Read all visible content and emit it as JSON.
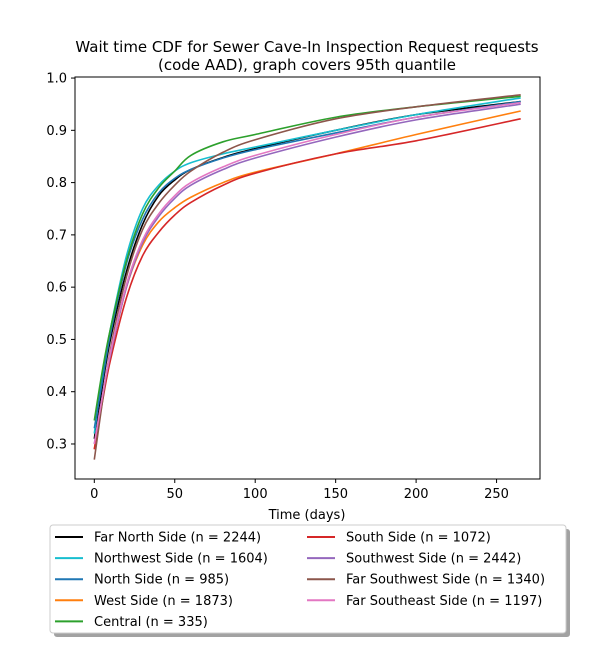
{
  "chart_data": {
    "type": "line",
    "title": "Wait time CDF for Sewer Cave-In Inspection Request  requests",
    "subtitle": "(code AAD), graph covers 95th quantile",
    "xlabel": "Time (days)",
    "ylabel": "",
    "xlim": [
      -12,
      277
    ],
    "ylim": [
      0.233,
      1.002
    ],
    "xticks": [
      0,
      50,
      100,
      150,
      200,
      250
    ],
    "yticks": [
      0.3,
      0.4,
      0.5,
      0.6,
      0.7,
      0.8,
      0.9,
      1.0
    ],
    "xtick_labels": [
      "0",
      "50",
      "100",
      "150",
      "200",
      "250"
    ],
    "ytick_labels": [
      "0.3",
      "0.4",
      "0.5",
      "0.6",
      "0.7",
      "0.8",
      "0.9",
      "1.0"
    ],
    "grid": false,
    "legend_placement": "bottom-center, two columns",
    "series": [
      {
        "name": "Far North Side (n = 2244)",
        "color": "#000000",
        "x": [
          0,
          5,
          10,
          20,
          30,
          40,
          50,
          60,
          80,
          100,
          150,
          200,
          265
        ],
        "y": [
          0.31,
          0.41,
          0.5,
          0.63,
          0.72,
          0.775,
          0.805,
          0.825,
          0.848,
          0.865,
          0.9,
          0.93,
          0.955
        ]
      },
      {
        "name": "Northwest Side (n = 1604)",
        "color": "#17becf",
        "x": [
          0,
          5,
          10,
          20,
          30,
          40,
          50,
          60,
          80,
          100,
          150,
          200,
          265
        ],
        "y": [
          0.32,
          0.43,
          0.52,
          0.66,
          0.75,
          0.795,
          0.822,
          0.838,
          0.855,
          0.868,
          0.9,
          0.93,
          0.962
        ]
      },
      {
        "name": "North Side (n = 985)",
        "color": "#1f77b4",
        "x": [
          0,
          5,
          10,
          20,
          30,
          40,
          50,
          60,
          80,
          100,
          150,
          200,
          265
        ],
        "y": [
          0.33,
          0.42,
          0.51,
          0.645,
          0.73,
          0.78,
          0.808,
          0.825,
          0.847,
          0.863,
          0.895,
          0.925,
          0.955
        ]
      },
      {
        "name": "West Side (n = 1873)",
        "color": "#ff7f0e",
        "x": [
          0,
          5,
          10,
          20,
          30,
          40,
          50,
          60,
          80,
          100,
          150,
          200,
          265
        ],
        "y": [
          0.29,
          0.385,
          0.47,
          0.6,
          0.68,
          0.725,
          0.752,
          0.772,
          0.8,
          0.82,
          0.855,
          0.892,
          0.937
        ]
      },
      {
        "name": "Central (n = 335)",
        "color": "#2ca02c",
        "x": [
          0,
          5,
          10,
          20,
          30,
          40,
          50,
          60,
          80,
          100,
          150,
          200,
          265
        ],
        "y": [
          0.345,
          0.44,
          0.52,
          0.65,
          0.74,
          0.79,
          0.822,
          0.852,
          0.878,
          0.892,
          0.925,
          0.945,
          0.965
        ]
      },
      {
        "name": "South Side (n = 1072)",
        "color": "#d62728",
        "x": [
          0,
          5,
          10,
          20,
          30,
          40,
          50,
          60,
          80,
          100,
          150,
          200,
          265
        ],
        "y": [
          0.29,
          0.38,
          0.46,
          0.58,
          0.66,
          0.705,
          0.738,
          0.762,
          0.795,
          0.818,
          0.855,
          0.88,
          0.922
        ]
      },
      {
        "name": "Southwest Side (n = 2442)",
        "color": "#9467bd",
        "x": [
          0,
          5,
          10,
          20,
          30,
          40,
          50,
          60,
          80,
          100,
          150,
          200,
          265
        ],
        "y": [
          0.3,
          0.39,
          0.47,
          0.6,
          0.685,
          0.735,
          0.77,
          0.795,
          0.825,
          0.847,
          0.887,
          0.92,
          0.95
        ]
      },
      {
        "name": "Far Southwest Side (n = 1340)",
        "color": "#8c564b",
        "x": [
          0,
          5,
          10,
          20,
          30,
          40,
          50,
          60,
          80,
          100,
          150,
          200,
          265
        ],
        "y": [
          0.27,
          0.38,
          0.48,
          0.62,
          0.71,
          0.76,
          0.795,
          0.822,
          0.858,
          0.882,
          0.922,
          0.945,
          0.968
        ]
      },
      {
        "name": "Far Southeast Side (n = 1197)",
        "color": "#e377c2",
        "x": [
          0,
          5,
          10,
          20,
          30,
          40,
          50,
          60,
          80,
          100,
          150,
          200,
          265
        ],
        "y": [
          0.3,
          0.39,
          0.475,
          0.605,
          0.69,
          0.74,
          0.775,
          0.8,
          0.83,
          0.852,
          0.892,
          0.925,
          0.953
        ]
      }
    ]
  }
}
